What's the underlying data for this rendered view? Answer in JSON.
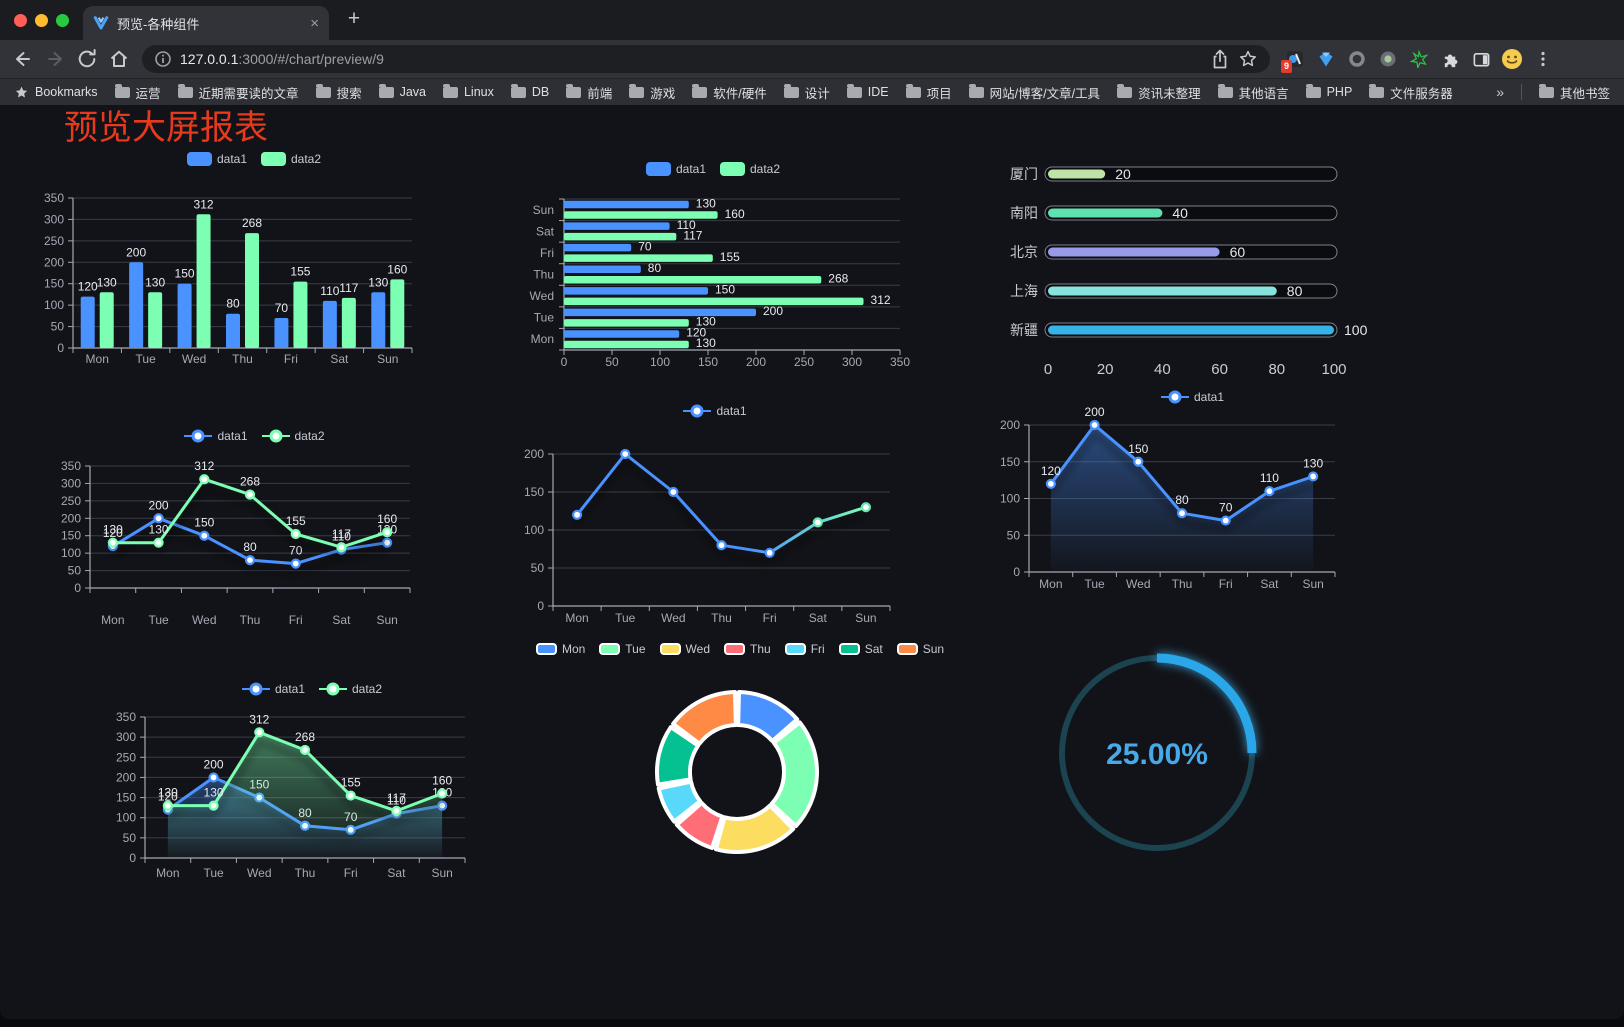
{
  "browser": {
    "tab": {
      "title": "预览-各种组件",
      "close_glyph": "×"
    },
    "new_tab_glyph": "+",
    "url": {
      "host": "127.0.0.1",
      "path": ":3000/#/chart/preview/9"
    },
    "extensions_badge": "9",
    "bookmarks": {
      "root_label": "Bookmarks",
      "folders": [
        "运营",
        "近期需要读的文章",
        "搜索",
        "Java",
        "Linux",
        "DB",
        "前端",
        "游戏",
        "软件/硬件",
        "设计",
        "IDE",
        "项目",
        "网站/博客/文章/工具",
        "资讯未整理",
        "其他语言",
        "PHP",
        "文件服务器"
      ],
      "overflow_glyph": "»",
      "other_label": "其他书签"
    }
  },
  "page": {
    "title": "预览大屏报表"
  },
  "chart_data": [
    {
      "id": "bar-grouped",
      "type": "bar",
      "categories": [
        "Mon",
        "Tue",
        "Wed",
        "Thu",
        "Fri",
        "Sat",
        "Sun"
      ],
      "series": [
        {
          "name": "data1",
          "color": "#4992ff",
          "values": [
            120,
            200,
            150,
            80,
            70,
            110,
            130
          ]
        },
        {
          "name": "data2",
          "color": "#7cffb2",
          "values": [
            130,
            130,
            312,
            268,
            155,
            117,
            160
          ]
        }
      ],
      "ylim": [
        0,
        350
      ],
      "yticks": [
        0,
        50,
        100,
        150,
        200,
        250,
        300,
        350
      ],
      "legend_position": "top",
      "grid": true
    },
    {
      "id": "bar-horizontal",
      "type": "hbar",
      "categories": [
        "Mon",
        "Tue",
        "Wed",
        "Thu",
        "Fri",
        "Sat",
        "Sun"
      ],
      "series": [
        {
          "name": "data1",
          "color": "#4992ff",
          "values": [
            120,
            200,
            150,
            80,
            70,
            110,
            130
          ]
        },
        {
          "name": "data2",
          "color": "#7cffb2",
          "values": [
            130,
            130,
            312,
            268,
            155,
            117,
            160
          ]
        }
      ],
      "xlim": [
        0,
        350
      ],
      "xticks": [
        0,
        50,
        100,
        150,
        200,
        250,
        300,
        350
      ],
      "legend_position": "top",
      "grid": true
    },
    {
      "id": "progress",
      "type": "progress",
      "items": [
        {
          "label": "厦门",
          "value": 20,
          "color": "#bfe3a6"
        },
        {
          "label": "南阳",
          "value": 40,
          "color": "#5fe0b1"
        },
        {
          "label": "北京",
          "value": 60,
          "color": "#979be8"
        },
        {
          "label": "上海",
          "value": 80,
          "color": "#87e3de"
        },
        {
          "label": "新疆",
          "value": 100,
          "color": "#36b4e8"
        }
      ],
      "xlim": [
        0,
        100
      ],
      "xticks": [
        0,
        20,
        40,
        60,
        80,
        100
      ]
    },
    {
      "id": "line-two",
      "type": "line",
      "labels": true,
      "area": false,
      "categories": [
        "Mon",
        "Tue",
        "Wed",
        "Thu",
        "Fri",
        "Sat",
        "Sun"
      ],
      "series": [
        {
          "name": "data1",
          "color": "#4992ff",
          "values": [
            120,
            200,
            150,
            80,
            70,
            110,
            130
          ]
        },
        {
          "name": "data2",
          "color": "#7cffb2",
          "values": [
            130,
            130,
            312,
            268,
            155,
            117,
            160
          ]
        }
      ],
      "ylim": [
        0,
        350
      ],
      "yticks": [
        0,
        50,
        100,
        150,
        200,
        250,
        300,
        350
      ],
      "legend_position": "top",
      "grid": true
    },
    {
      "id": "line-gradient",
      "type": "line",
      "labels": false,
      "area": false,
      "categories": [
        "Mon",
        "Tue",
        "Wed",
        "Thu",
        "Fri",
        "Sat",
        "Sun"
      ],
      "series": [
        {
          "name": "data1",
          "color": "#4992ff",
          "color2": "#7cffb2",
          "gradient": true,
          "values": [
            120,
            200,
            150,
            80,
            70,
            110,
            130
          ]
        }
      ],
      "ylim": [
        0,
        200
      ],
      "yticks": [
        0,
        50,
        100,
        150,
        200
      ],
      "legend_position": "top",
      "grid": true
    },
    {
      "id": "area-single",
      "type": "line",
      "labels": true,
      "area": true,
      "categories": [
        "Mon",
        "Tue",
        "Wed",
        "Thu",
        "Fri",
        "Sat",
        "Sun"
      ],
      "series": [
        {
          "name": "data1",
          "color": "#4992ff",
          "values": [
            120,
            200,
            150,
            80,
            70,
            110,
            130
          ]
        }
      ],
      "ylim": [
        0,
        200
      ],
      "yticks": [
        0,
        50,
        100,
        150,
        200
      ],
      "legend_position": "top",
      "grid": true
    },
    {
      "id": "area-two",
      "type": "line",
      "labels": true,
      "area": true,
      "categories": [
        "Mon",
        "Tue",
        "Wed",
        "Thu",
        "Fri",
        "Sat",
        "Sun"
      ],
      "series": [
        {
          "name": "data1",
          "color": "#4992ff",
          "values": [
            120,
            200,
            150,
            80,
            70,
            110,
            130
          ]
        },
        {
          "name": "data2",
          "color": "#7cffb2",
          "values": [
            130,
            130,
            312,
            268,
            155,
            117,
            160
          ]
        }
      ],
      "ylim": [
        0,
        350
      ],
      "yticks": [
        0,
        50,
        100,
        150,
        200,
        250,
        300,
        350
      ],
      "legend_position": "top",
      "grid": true
    },
    {
      "id": "donut",
      "type": "donut",
      "items": [
        {
          "label": "Mon",
          "value": 120,
          "color": "#4992ff"
        },
        {
          "label": "Tue",
          "value": 200,
          "color": "#7cffb2"
        },
        {
          "label": "Wed",
          "value": 150,
          "color": "#fddd60"
        },
        {
          "label": "Thu",
          "value": 80,
          "color": "#ff6e76"
        },
        {
          "label": "Fri",
          "value": 70,
          "color": "#58d9f9"
        },
        {
          "label": "Sat",
          "value": 110,
          "color": "#05c091"
        },
        {
          "label": "Sun",
          "value": 130,
          "color": "#ff8a45"
        }
      ],
      "legend_position": "top"
    },
    {
      "id": "gauge",
      "type": "gauge",
      "value": 25,
      "text": "25.00%",
      "color": "#2aa7e8",
      "track": "#1b4350",
      "text_color": "#47a9e8"
    }
  ]
}
